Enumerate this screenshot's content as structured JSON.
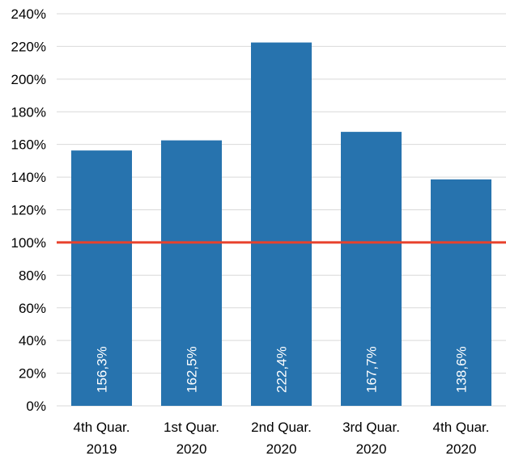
{
  "chart_data": {
    "type": "bar",
    "categories": [
      [
        "4th Quar.",
        "2019"
      ],
      [
        "1st Quar.",
        "2020"
      ],
      [
        "2nd Quar.",
        "2020"
      ],
      [
        "3rd Quar.",
        "2020"
      ],
      [
        "4th Quar.",
        "2020"
      ]
    ],
    "values": [
      156.3,
      162.5,
      222.4,
      167.7,
      138.6
    ],
    "data_labels": [
      "156,3%",
      "162,5%",
      "222,4%",
      "167,7%",
      "138,6%"
    ],
    "yticks": [
      "0%",
      "20%",
      "40%",
      "60%",
      "80%",
      "100%",
      "120%",
      "140%",
      "160%",
      "180%",
      "200%",
      "220%",
      "240%"
    ],
    "ylim": [
      0,
      240
    ],
    "reference_line": 100,
    "grid": true,
    "colors": {
      "bar": "#2773ae",
      "reference_line": "#e8412c",
      "grid": "#d9d9d9"
    }
  }
}
